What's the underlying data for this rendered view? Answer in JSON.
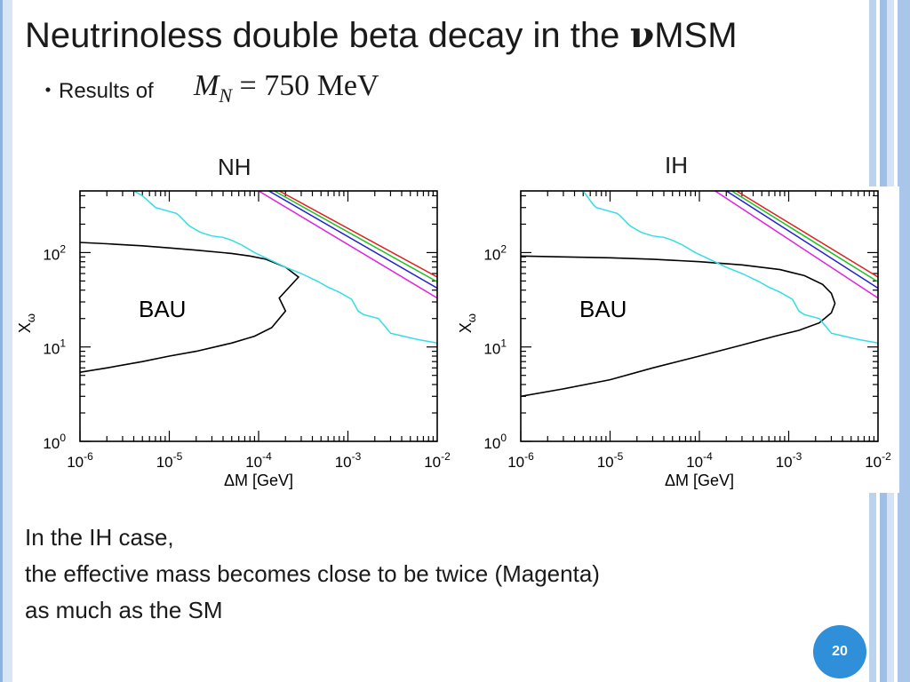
{
  "slide": {
    "title_prefix": "Neutrinoless double beta decay in the ",
    "title_nu": "ν",
    "title_suffix": "MSM",
    "bullet": "・",
    "subtitle": "Results of",
    "formula_M": "M",
    "formula_sub": "N",
    "formula_rest": " = 750 MeV",
    "caption_lines": [
      "In the IH case,",
      "the effective mass becomes close to be twice (Magenta)",
      "as much as the SM"
    ],
    "page_number": "20"
  },
  "chart_data": [
    {
      "type": "line",
      "panel_label": "NH",
      "xlabel": "ΔM [GeV]",
      "ylabel": "X_ω",
      "xscale": "log",
      "yscale": "log",
      "xlim": [
        1e-06,
        0.01
      ],
      "ylim": [
        1,
        450
      ],
      "x_tick_labels": [
        "10^-6",
        "10^-5",
        "10^-4",
        "10^-3",
        "10^-2"
      ],
      "y_tick_labels": [
        "10^0",
        "10^1",
        "10^2"
      ],
      "annotation": "BAU",
      "colors": {
        "black": "#000000",
        "cyan": "#33dde8",
        "red": "#e02020",
        "green": "#20c020",
        "blue": "#2020d0",
        "magenta": "#e020e0"
      },
      "series": [
        {
          "color": "black",
          "x": [
            1e-06,
            2e-06,
            5e-06,
            1e-05,
            2e-05,
            5e-05,
            8e-05,
            0.00012,
            0.0002,
            0.00028,
            0.00017,
            0.0002,
            0.00014,
            9e-05,
            5e-05,
            2e-05,
            1e-05,
            5e-06,
            2e-06,
            1e-06
          ],
          "y": [
            128,
            124,
            118,
            112,
            106,
            98,
            92,
            85,
            70,
            55,
            33,
            24,
            16,
            13,
            11,
            9,
            8,
            7,
            6,
            5.4
          ]
        },
        {
          "color": "cyan",
          "x": [
            4e-06,
            5e-06,
            6.5e-06,
            7e-06,
            1.2e-05,
            1.3e-05,
            1.6e-05,
            1.7e-05,
            2.2e-05,
            2.4e-05,
            3e-05,
            4e-05,
            5e-05,
            6.5e-05,
            9e-05,
            0.00014,
            0.0002,
            0.0003,
            0.00045,
            0.0006,
            0.0008,
            0.0011,
            0.0013,
            0.0015,
            0.0022,
            0.003,
            0.0042,
            0.006,
            0.01
          ],
          "y": [
            450,
            400,
            320,
            300,
            260,
            245,
            200,
            190,
            165,
            160,
            150,
            145,
            135,
            120,
            100,
            82,
            70,
            60,
            50,
            43,
            38,
            32,
            24,
            22,
            20,
            14,
            13,
            12,
            11
          ]
        },
        {
          "color": "red",
          "x": [
            0.00017,
            0.01
          ],
          "y": [
            450,
            55
          ]
        },
        {
          "color": "green",
          "x": [
            0.00015,
            0.01
          ],
          "y": [
            450,
            49
          ]
        },
        {
          "color": "blue",
          "x": [
            0.00013,
            0.01
          ],
          "y": [
            450,
            42
          ]
        },
        {
          "color": "magenta",
          "x": [
            0.0001,
            0.01
          ],
          "y": [
            450,
            33
          ]
        }
      ]
    },
    {
      "type": "line",
      "panel_label": "IH",
      "xlabel": "ΔM [GeV]",
      "ylabel": "X_ω",
      "xscale": "log",
      "yscale": "log",
      "xlim": [
        1e-06,
        0.01
      ],
      "ylim": [
        1,
        450
      ],
      "x_tick_labels": [
        "10^-6",
        "10^-5",
        "10^-4",
        "10^-3",
        "10^-2"
      ],
      "y_tick_labels": [
        "10^0",
        "10^1",
        "10^2"
      ],
      "annotation": "BAU",
      "colors": {
        "black": "#000000",
        "cyan": "#33dde8",
        "red": "#e02020",
        "green": "#20c020",
        "blue": "#2020d0",
        "magenta": "#e020e0"
      },
      "series": [
        {
          "color": "black",
          "x": [
            1e-06,
            3e-06,
            1e-05,
            3e-05,
            0.0001,
            0.0003,
            0.0008,
            0.0015,
            0.0024,
            0.003,
            0.0033,
            0.003,
            0.0022,
            0.0013,
            0.0007,
            0.0003,
            0.0001,
            3e-05,
            1e-05,
            3e-06,
            1e-06
          ],
          "y": [
            92,
            90,
            88,
            85,
            80,
            74,
            66,
            57,
            46,
            37,
            29,
            23,
            18,
            15,
            13,
            10.5,
            8,
            6,
            4.5,
            3.6,
            3
          ]
        },
        {
          "color": "cyan",
          "x": [
            5e-06,
            6.5e-06,
            7e-06,
            1.2e-05,
            1.3e-05,
            1.6e-05,
            1.7e-05,
            2.2e-05,
            2.4e-05,
            3e-05,
            4e-05,
            5e-05,
            6.5e-05,
            9e-05,
            0.00014,
            0.0002,
            0.0003,
            0.00045,
            0.0006,
            0.0008,
            0.0011,
            0.0013,
            0.0015,
            0.0022,
            0.003,
            0.0042,
            0.006,
            0.01
          ],
          "y": [
            450,
            320,
            300,
            260,
            245,
            200,
            190,
            165,
            160,
            150,
            145,
            135,
            120,
            100,
            82,
            70,
            60,
            50,
            43,
            38,
            32,
            24,
            22,
            20,
            14,
            13,
            12,
            11
          ]
        },
        {
          "color": "red",
          "x": [
            0.00026,
            0.01
          ],
          "y": [
            450,
            55
          ]
        },
        {
          "color": "green",
          "x": [
            0.00023,
            0.01
          ],
          "y": [
            450,
            49
          ]
        },
        {
          "color": "blue",
          "x": [
            0.0002,
            0.01
          ],
          "y": [
            450,
            42
          ]
        },
        {
          "color": "magenta",
          "x": [
            0.00015,
            0.01
          ],
          "y": [
            450,
            33
          ]
        }
      ]
    }
  ]
}
